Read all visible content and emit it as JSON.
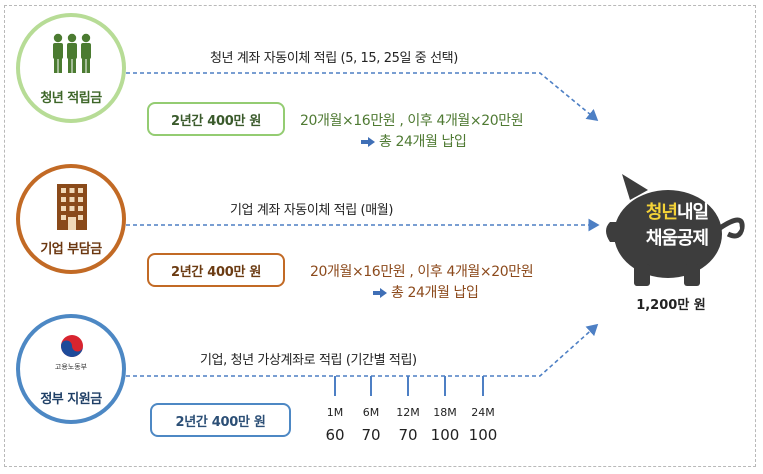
{
  "rows": [
    {
      "label": "청년 적립금",
      "transfer_text": "청년 계좌 자동이체 적립 (5, 15, 25일 중 선택)",
      "box_label": "2년간 400만 원",
      "calc_line": "20개월×16만원 , 이후 4개월×20만원",
      "total_line": "총 24개월 납입"
    },
    {
      "label": "기업 부담금",
      "transfer_text": "기업 계좌 자동이체 적립 (매월)",
      "box_label": "2년간 400만 원",
      "calc_line": "20개월×16만원 , 이후 4개월×20만원",
      "total_line": "총 24개월 납입"
    },
    {
      "label": "정부 지원금",
      "ministry_name": "고용노동부",
      "transfer_text": "기업, 청년 가상계좌로 적립 (기간별 적립)",
      "box_label": "2년간 400만 원",
      "schedule": [
        {
          "month": "1M",
          "value": "60"
        },
        {
          "month": "6M",
          "value": "70"
        },
        {
          "month": "12M",
          "value": "70"
        },
        {
          "month": "18M",
          "value": "100"
        },
        {
          "month": "24M",
          "value": "100"
        }
      ]
    }
  ],
  "piggy_bank": {
    "highlight": "청년",
    "line1_rest": "내일",
    "line2": "채움공제",
    "amount": "1,200만 원"
  },
  "colors": {
    "youth": "#b7dc96",
    "company": "#c26a25",
    "government": "#4d88c4",
    "piggy": "#3d3d3d",
    "dashed_line": "#4d7fc4"
  },
  "icons": [
    "people-icon",
    "building-icon",
    "government-emblem-icon",
    "piggy-bank-icon",
    "arrow-right-icon"
  ]
}
